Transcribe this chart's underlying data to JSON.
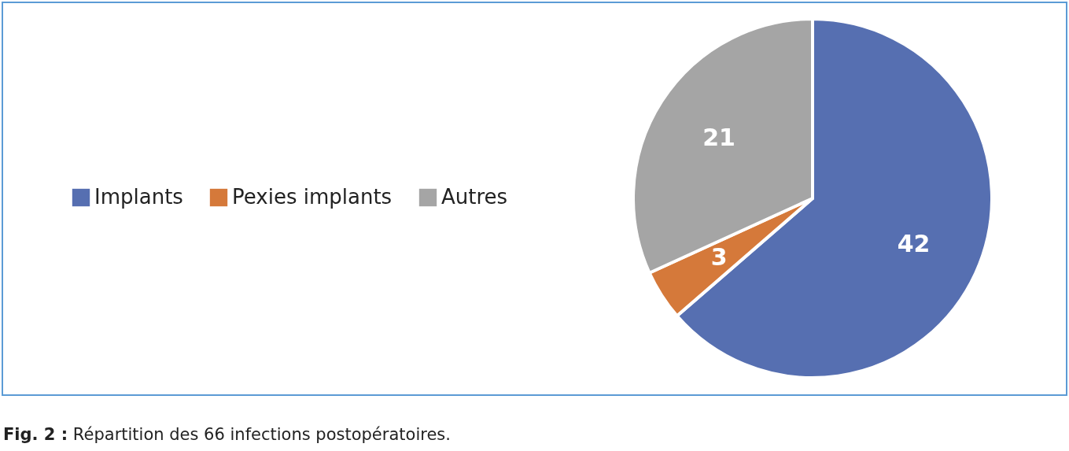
{
  "chart_data": {
    "type": "pie",
    "categories": [
      "Implants",
      "Pexies implants",
      "Autres"
    ],
    "values": [
      42,
      3,
      21
    ],
    "colors": [
      "#566fb1",
      "#d5793a",
      "#a5a5a5"
    ],
    "data_labels": true,
    "legend": "left",
    "annotations": [
      "Fig. 2 : Répartition des 66 infections postopératoires."
    ]
  }
}
